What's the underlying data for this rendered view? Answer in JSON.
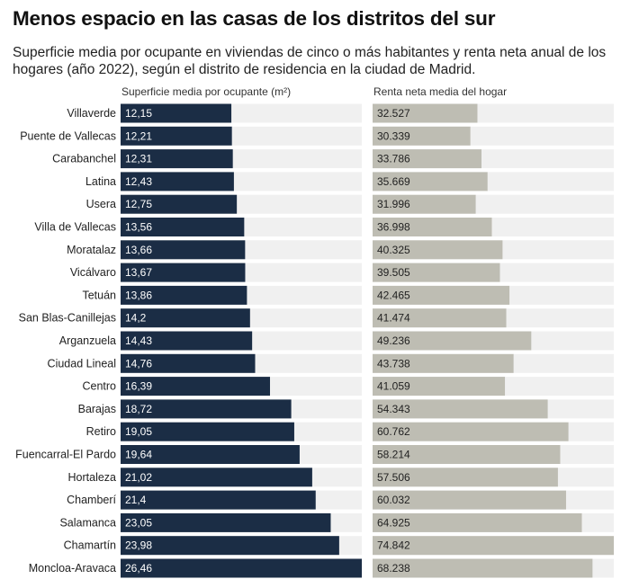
{
  "header": {
    "title": "Menos espacio en las casas de los distritos del sur",
    "subtitle": "Superficie media por ocupante en viviendas de cinco o más habitantes y renta neta anual de los hogares (año 2022), según el distrito de residencia en la ciudad de Madrid."
  },
  "colors": {
    "area_bar": "#1b2d45",
    "income_bar": "#bebdb3",
    "track": "#f0f0f0",
    "area_text": "#ffffff",
    "income_text": "#222222"
  },
  "chart_data": {
    "type": "bar",
    "orientation": "horizontal",
    "title": "Menos espacio en las casas de los distritos del sur",
    "categories": [
      "Villaverde",
      "Puente de Vallecas",
      "Carabanchel",
      "Latina",
      "Usera",
      "Villa de Vallecas",
      "Moratalaz",
      "Vicálvaro",
      "Tetuán",
      "San Blas-Canillejas",
      "Arganzuela",
      "Ciudad Lineal",
      "Centro",
      "Barajas",
      "Retiro",
      "Fuencarral-El Pardo",
      "Hortaleza",
      "Chamberí",
      "Salamanca",
      "Chamartín",
      "Moncloa-Aravaca"
    ],
    "series": [
      {
        "name": "Superficie media por ocupante (m²)",
        "values": [
          12.15,
          12.21,
          12.31,
          12.43,
          12.75,
          13.56,
          13.66,
          13.67,
          13.86,
          14.2,
          14.43,
          14.76,
          16.39,
          18.72,
          19.05,
          19.64,
          21.02,
          21.4,
          23.05,
          23.98,
          26.46
        ],
        "labels": [
          "12,15",
          "12,21",
          "12,31",
          "12,43",
          "12,75",
          "13,56",
          "13,66",
          "13,67",
          "13,86",
          "14,2",
          "14,43",
          "14,76",
          "16,39",
          "18,72",
          "19,05",
          "19,64",
          "21,02",
          "21,4",
          "23,05",
          "23,98",
          "26,46"
        ],
        "xlim": [
          0,
          26.46
        ]
      },
      {
        "name": "Renta neta media del hogar",
        "values": [
          32527,
          30339,
          33786,
          35669,
          31996,
          36998,
          40325,
          39505,
          42465,
          41474,
          49236,
          43738,
          41059,
          54343,
          60762,
          58214,
          57506,
          60032,
          64925,
          74842,
          68238
        ],
        "labels": [
          "32.527",
          "30.339",
          "33.786",
          "35.669",
          "31.996",
          "36.998",
          "40.325",
          "39.505",
          "42.465",
          "41.474",
          "49.236",
          "43.738",
          "41.059",
          "54.343",
          "60.762",
          "58.214",
          "57.506",
          "60.032",
          "64.925",
          "74.842",
          "68.238"
        ],
        "xlim": [
          0,
          74842
        ]
      }
    ]
  }
}
